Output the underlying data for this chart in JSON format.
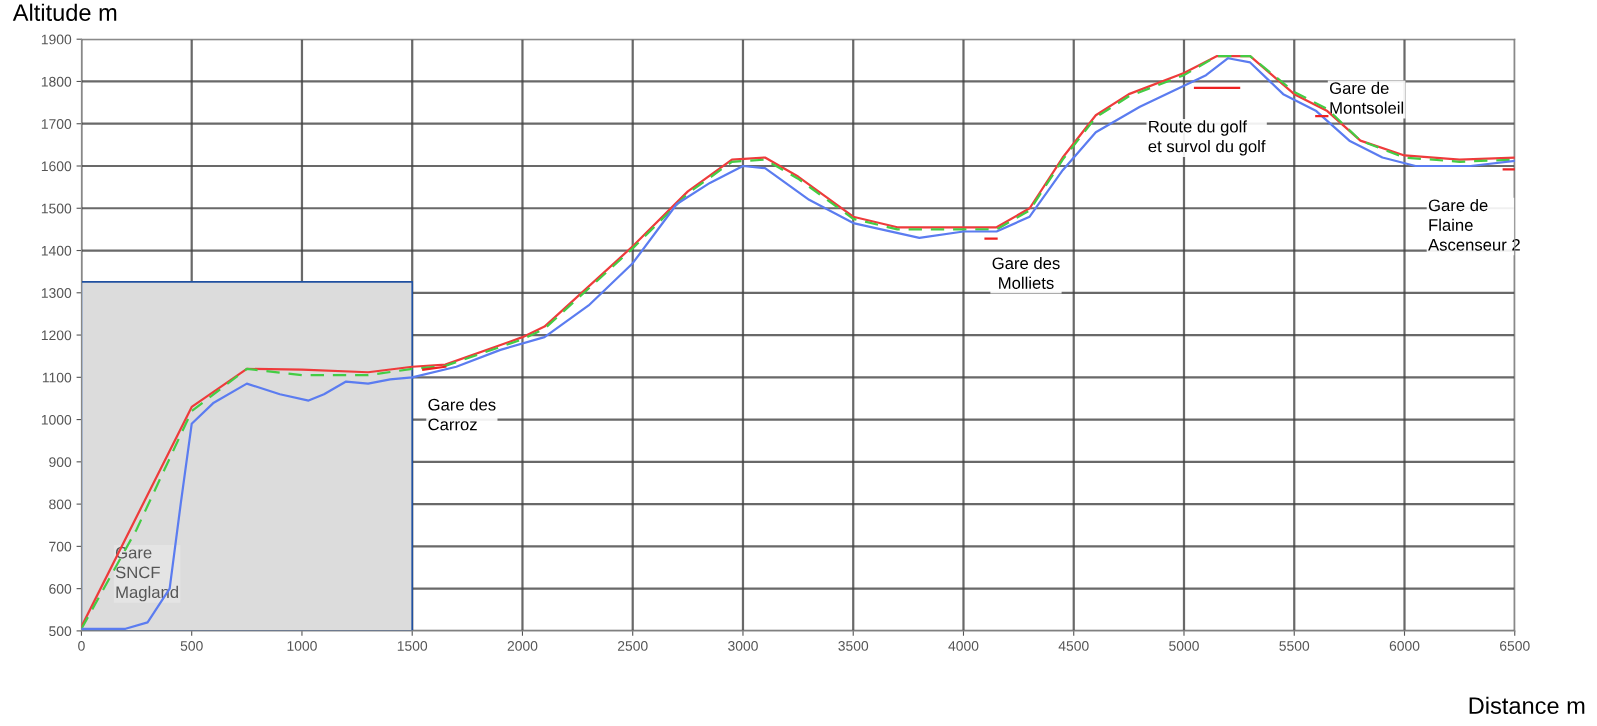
{
  "chart_data": {
    "type": "line",
    "xlabel": "Distance m",
    "ylabel": "Altitude m",
    "xlim": [
      0,
      6500
    ],
    "xticks": [
      0,
      500,
      1000,
      1500,
      2000,
      2500,
      3000,
      3500,
      4000,
      4500,
      5000,
      5500,
      6000,
      6500
    ],
    "ylim": [
      500,
      1900
    ],
    "yticks": [
      500,
      600,
      700,
      800,
      900,
      1000,
      1100,
      1200,
      1300,
      1400,
      1500,
      1600,
      1700,
      1800,
      1900
    ],
    "grid": true,
    "legend": false,
    "bands": [
      {
        "axis": "x",
        "from": 0,
        "to": 1500,
        "color": "#dcdcdc"
      }
    ],
    "series": [
      {
        "color": "#ee3b3b",
        "line_style": "solid",
        "x": [
          0,
          500,
          750,
          1000,
          1300,
          1500,
          1650,
          2000,
          2100,
          2500,
          2750,
          2950,
          3100,
          3250,
          3500,
          3700,
          4150,
          4300,
          4450,
          4600,
          4750,
          5000,
          5150,
          5300,
          5500,
          5650,
          5800,
          6000,
          6250,
          6500
        ],
        "values": [
          510,
          1030,
          1120,
          1118,
          1112,
          1125,
          1130,
          1195,
          1220,
          1410,
          1540,
          1615,
          1620,
          1575,
          1480,
          1455,
          1455,
          1500,
          1620,
          1720,
          1770,
          1820,
          1860,
          1860,
          1770,
          1730,
          1660,
          1625,
          1615,
          1620
        ]
      },
      {
        "color": "#44cc44",
        "line_style": "dashed",
        "x": [
          0,
          250,
          500,
          750,
          1000,
          1300,
          1500,
          1650,
          2000,
          2100,
          2500,
          2750,
          2950,
          3100,
          3250,
          3500,
          3700,
          4150,
          4300,
          4450,
          4600,
          4750,
          5000,
          5150,
          5300,
          5500,
          5650,
          5800,
          6000,
          6250,
          6500
        ],
        "values": [
          505,
          740,
          1020,
          1120,
          1105,
          1105,
          1120,
          1127,
          1190,
          1215,
          1405,
          1535,
          1610,
          1615,
          1570,
          1475,
          1450,
          1450,
          1495,
          1615,
          1715,
          1765,
          1815,
          1860,
          1860,
          1775,
          1735,
          1660,
          1620,
          1610,
          1615
        ]
      },
      {
        "color": "#5b7cf0",
        "line_style": "solid",
        "x": [
          0,
          200,
          300,
          400,
          450,
          500,
          600,
          750,
          900,
          1030,
          1100,
          1200,
          1300,
          1400,
          1500,
          1700,
          1900,
          2100,
          2300,
          2500,
          2700,
          2850,
          3000,
          3100,
          3300,
          3500,
          3800,
          4000,
          4150,
          4300,
          4450,
          4600,
          4800,
          5000,
          5100,
          5200,
          5300,
          5450,
          5600,
          5750,
          5900,
          6050,
          6300,
          6500
        ],
        "values": [
          505,
          505,
          520,
          600,
          800,
          990,
          1040,
          1085,
          1060,
          1045,
          1060,
          1090,
          1085,
          1095,
          1100,
          1125,
          1165,
          1195,
          1270,
          1370,
          1510,
          1560,
          1600,
          1595,
          1520,
          1465,
          1430,
          1445,
          1445,
          1480,
          1590,
          1680,
          1740,
          1790,
          1815,
          1855,
          1845,
          1770,
          1730,
          1660,
          1620,
          1600,
          1600,
          1612
        ]
      },
      {
        "color": "#ee2222",
        "line_style": "solid",
        "x": [
          1550,
          1650,
          null,
          4100,
          4150,
          null,
          5050,
          5250,
          null,
          5600,
          5650,
          null,
          6450,
          6500
        ],
        "values": [
          1118,
          1125,
          null,
          1428,
          1428,
          null,
          1785,
          1785,
          null,
          1718,
          1718,
          null,
          1592,
          1592
        ]
      }
    ],
    "annotations": [
      "Gare\nSNCF\nMagland",
      "Gare des\nCarroz",
      "Gare des\nMolliets",
      "Route du golf\net survol du golf",
      "Gare de\nMontsoleil",
      "Gare de\nFlaine\nAscenseur 2"
    ]
  }
}
